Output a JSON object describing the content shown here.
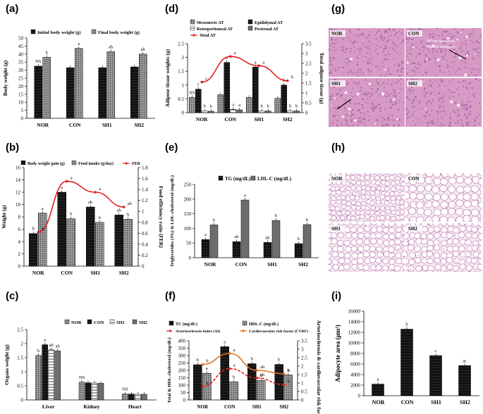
{
  "panel_labels": [
    "(a)",
    "(b)",
    "(c)",
    "(d)",
    "(e)",
    "(f)",
    "(g)",
    "(h)",
    "(i)"
  ],
  "colors": {
    "black": "#111111",
    "dark_gray": "#555555",
    "light_gray": "#bdbdbd",
    "mid_gray": "#999999",
    "red": "#e02020",
    "orange": "#e07020",
    "he_pink": "#d79ac4",
    "he_purple": "#9a5aa2",
    "fat_bg": "#f2edf3"
  },
  "chart_data": [
    {
      "id": "a",
      "type": "bar",
      "title": "",
      "ylabel": "Body weight (g)",
      "ylim": [
        0,
        50
      ],
      "yticks": [
        0,
        5,
        10,
        15,
        20,
        25,
        30,
        35,
        40,
        45,
        50
      ],
      "categories": [
        "NOR",
        "CON",
        "SH1",
        "SH2"
      ],
      "legend": [
        "Initial body weight (g)",
        "Final body weight (g)"
      ],
      "series": [
        {
          "name": "Initial body weight (g)",
          "style": "black",
          "values": [
            32.5,
            31.5,
            31.5,
            32.0
          ],
          "labels": [
            "NS",
            "",
            "",
            ""
          ]
        },
        {
          "name": "Final body weight (g)",
          "style": "light_gray",
          "values": [
            38.0,
            43.5,
            41.5,
            40.0
          ],
          "labels": [
            "b",
            "a",
            "ab",
            "ab"
          ]
        }
      ]
    },
    {
      "id": "b",
      "type": "bar+line",
      "ylabel": "Weight (g)",
      "y2label": "Food efficiency ratio (FER)",
      "ylim": [
        0,
        16
      ],
      "yticks": [
        0,
        2,
        4,
        6,
        8,
        10,
        12,
        14,
        16
      ],
      "y2lim": [
        0,
        1.8
      ],
      "y2ticks": [
        0,
        0.2,
        0.4,
        0.6,
        0.8,
        1,
        1.2,
        1.4,
        1.6,
        1.8
      ],
      "categories": [
        "NOR",
        "CON",
        "SH1",
        "SH2"
      ],
      "legend": [
        "Body weight gain (g)",
        "Food intake (g/day)",
        "FER"
      ],
      "series": [
        {
          "name": "Body weight gain (g)",
          "style": "black",
          "values": [
            5.3,
            12.0,
            9.6,
            8.3
          ],
          "labels": [
            "b",
            "a",
            "ab",
            "ab"
          ]
        },
        {
          "name": "Food intake (g/day)",
          "style": "light_gray",
          "values": [
            8.6,
            7.7,
            7.1,
            7.6
          ],
          "labels": [
            "a",
            "b",
            "b",
            "b"
          ]
        }
      ],
      "line": {
        "name": "FER",
        "values": [
          0.62,
          1.55,
          1.35,
          1.08
        ],
        "labels": [
          "b",
          "a",
          "a",
          "ab"
        ]
      }
    },
    {
      "id": "c",
      "type": "bar",
      "ylabel": "Organs weight (g)",
      "ylim": [
        0,
        2.5
      ],
      "yticks": [
        0,
        0.5,
        1,
        1.5,
        2,
        2.5
      ],
      "categories": [
        "Liver",
        "Kidney",
        "Heart"
      ],
      "legend": [
        "NOR",
        "CON",
        "SH1",
        "SH2"
      ],
      "series": [
        {
          "name": "NOR",
          "style": "light_gray",
          "values": [
            1.58,
            0.63,
            0.21
          ],
          "labels": [
            "b",
            "NS",
            "NS"
          ]
        },
        {
          "name": "CON",
          "style": "black",
          "values": [
            1.96,
            0.61,
            0.21
          ],
          "labels": [
            "a",
            "",
            ""
          ]
        },
        {
          "name": "SH1",
          "style": "dashed",
          "values": [
            1.78,
            0.6,
            0.2
          ],
          "labels": [
            "ab",
            "",
            ""
          ]
        },
        {
          "name": "SH2",
          "style": "dark_gray",
          "values": [
            1.74,
            0.59,
            0.2
          ],
          "labels": [
            "ab",
            "",
            ""
          ]
        }
      ]
    },
    {
      "id": "d",
      "type": "bar+line",
      "ylabel": "Adipose tissue weights (g)",
      "y2label": "Total adipose tissue (g)",
      "ylim": [
        0,
        2.5
      ],
      "yticks": [
        0,
        0.5,
        1,
        1.5,
        2,
        2.5
      ],
      "y2lim": [
        0,
        3.5
      ],
      "y2ticks": [
        0,
        0.5,
        1,
        1.5,
        2,
        2.5,
        3,
        3.5
      ],
      "categories": [
        "NOR",
        "CON",
        "SH1",
        "SH2"
      ],
      "legend": [
        "Mesenteric AT",
        "Epididymal AT",
        "Retroperitoneal AT",
        "Perirenal AT",
        "Total AT"
      ],
      "series": [
        {
          "name": "Mesenteric AT",
          "style": "light_gray",
          "values": [
            0.55,
            0.65,
            0.55,
            0.52
          ],
          "labels": [
            "NS",
            "",
            "",
            ""
          ]
        },
        {
          "name": "Epididymal AT",
          "style": "black",
          "values": [
            0.85,
            1.82,
            1.65,
            1.0
          ],
          "labels": [
            "c",
            "a",
            "a",
            "b"
          ]
        },
        {
          "name": "Retroperitoneal AT",
          "style": "dashed",
          "values": [
            0.06,
            0.12,
            0.06,
            0.06
          ],
          "labels": [
            "b",
            "a",
            "b",
            "b"
          ]
        },
        {
          "name": "Perirenal AT",
          "style": "dark_gray",
          "values": [
            0.05,
            0.1,
            0.06,
            0.06
          ],
          "labels": [
            "b",
            "a",
            "b",
            "b"
          ]
        }
      ],
      "line": {
        "name": "Total AT",
        "values": [
          1.55,
          2.85,
          2.38,
          1.62
        ],
        "labels": [
          "c",
          "a",
          "a",
          "b"
        ]
      }
    },
    {
      "id": "e",
      "type": "bar",
      "ylabel": "Triglycerides (TG) & LDL-cholesterol (mg/dL)",
      "ylim": [
        0,
        250
      ],
      "yticks": [
        0,
        50,
        100,
        150,
        200,
        250
      ],
      "categories": [
        "NOR",
        "CON",
        "SH1",
        "SH2"
      ],
      "legend": [
        "TG (mg/dL)",
        "LDL-C (mg/dL)"
      ],
      "series": [
        {
          "name": "TG (mg/dL)",
          "style": "black",
          "values": [
            62,
            55,
            52,
            48
          ],
          "labels": [
            "a",
            "ab",
            "ab",
            "b"
          ]
        },
        {
          "name": "LDL-C (mg/dL)",
          "style": "dark_gray",
          "values": [
            112,
            197,
            127,
            113
          ],
          "labels": [
            "b",
            "a",
            "b",
            "b"
          ]
        }
      ]
    },
    {
      "id": "f",
      "type": "bar+line",
      "ylabel": "Total & HDL-cholesterol (mg/dL)",
      "y2label": "Arteriosclerosis & cardiovascular risk factor",
      "ylim": [
        0,
        400
      ],
      "yticks": [
        0,
        50,
        100,
        150,
        200,
        250,
        300,
        350,
        400
      ],
      "y2lim": [
        0,
        3.5
      ],
      "y2ticks": [
        0,
        0.5,
        1,
        1.5,
        2,
        2.5,
        3,
        3.5
      ],
      "categories": [
        "NOR",
        "CON",
        "SH1",
        "SH2"
      ],
      "legend": [
        "TC (mg/dL)",
        "HDL-C (mg/dL)",
        "Arteriosclerosis index (AI)",
        "Cardiovascular risk factor (CVRF)"
      ],
      "series": [
        {
          "name": "TC (mg/dL)",
          "style": "black",
          "values": [
            238,
            360,
            245,
            240
          ],
          "labels": [
            "b",
            "a",
            "b",
            "b"
          ]
        },
        {
          "name": "HDL-C (mg/dL)",
          "style": "light_gray",
          "values": [
            180,
            122,
            132,
            168
          ],
          "labels": [
            "a",
            "b",
            "b",
            "a"
          ]
        }
      ],
      "lines": [
        {
          "name": "Arteriosclerosis index (AI)",
          "style": "red_dashed",
          "values": [
            0.8,
            1.85,
            1.3,
            0.9
          ],
          "labels": [
            "b",
            "a",
            "ab",
            "b"
          ]
        },
        {
          "name": "Cardiovascular risk factor (CVRF)",
          "style": "orange",
          "values": [
            2.1,
            2.75,
            1.75,
            1.55
          ],
          "labels": [
            "b",
            "a",
            "ab",
            "b"
          ]
        }
      ]
    },
    {
      "id": "i",
      "type": "bar",
      "ylabel": "Adipocyte area (μm²)",
      "ylim": [
        0,
        16000
      ],
      "yticks": [
        0,
        2000,
        4000,
        6000,
        8000,
        10000,
        12000,
        14000,
        16000
      ],
      "categories": [
        "NOR",
        "CON",
        "SH1",
        "SH2"
      ],
      "series": [
        {
          "name": "Adipocyte area",
          "style": "black",
          "values": [
            2200,
            12600,
            7600,
            5700
          ],
          "labels": [
            "a",
            "b",
            "c",
            "ac"
          ]
        }
      ]
    }
  ],
  "histology_liver": {
    "panels": [
      "NOR",
      "CON",
      "SH1",
      "SH2"
    ],
    "annotation": "Micro steatosis, Macro steatosis"
  },
  "histology_fat": {
    "panels": [
      "NOR",
      "CON",
      "SH1",
      "SH2"
    ]
  }
}
